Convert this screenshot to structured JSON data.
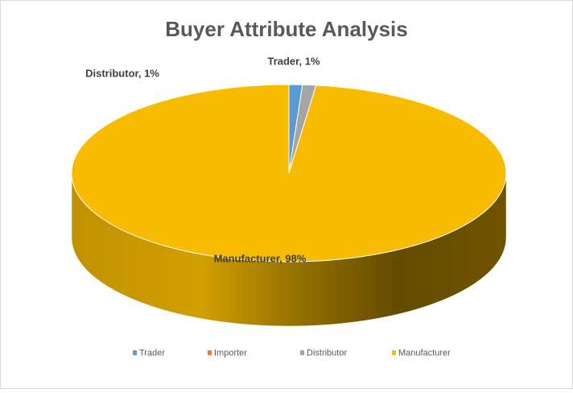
{
  "chart_data": {
    "type": "pie3d",
    "title": "Buyer Attribute Analysis",
    "categories": [
      "Trader",
      "Importer",
      "Distributor",
      "Manufacturer"
    ],
    "values": [
      1,
      0,
      1,
      98
    ],
    "value_labels": [
      "Trader, 1%",
      null,
      "Distributor, 1%",
      "Manufacturer, 98%"
    ],
    "colors": [
      "#5b9bd5",
      "#ed7d31",
      "#a5a5a5",
      "#f7bb00"
    ],
    "legend": "bottom"
  }
}
